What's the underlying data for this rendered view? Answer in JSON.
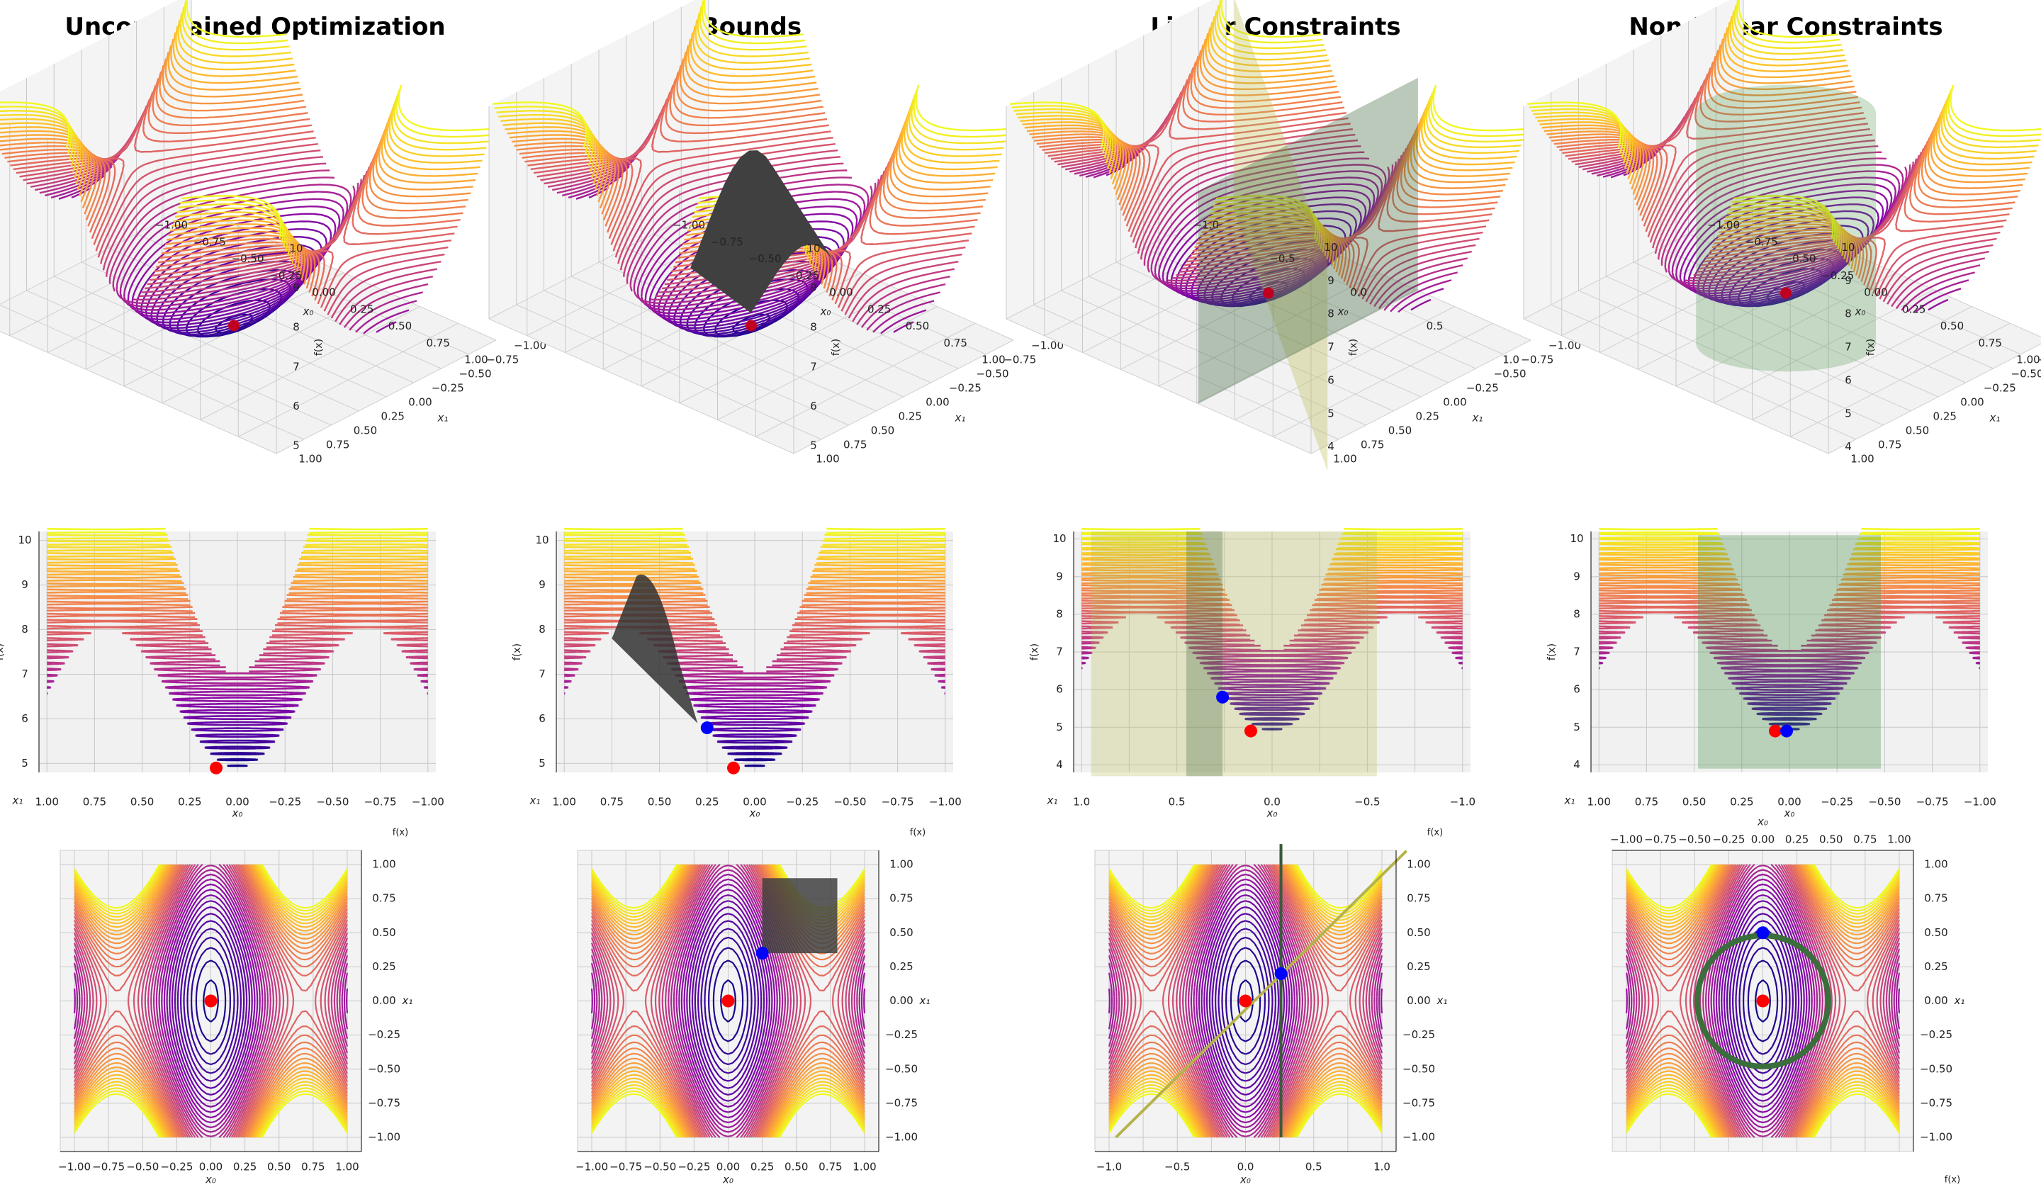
{
  "figure": {
    "columns": [
      {
        "title": "Unconstrained Optimization",
        "constraint": "none"
      },
      {
        "title": "Bounds",
        "constraint": "bounds"
      },
      {
        "title": "Linear Constraints",
        "constraint": "linear"
      },
      {
        "title": "Non-Linear Constraints",
        "constraint": "nonlinear"
      }
    ],
    "rows": [
      "3D perspective view",
      "side view (f(x) vs x0)",
      "top view (x1 vs x0)"
    ]
  },
  "chart_data": [
    {
      "type": "line",
      "title": "Unconstrained Optimization",
      "views": [
        "perspective-3d",
        "side",
        "top"
      ],
      "xlabel": "x_0",
      "ylabel": "x_1",
      "zlabel": "f(x)",
      "xlim": [
        -1.0,
        1.0
      ],
      "ylim": [
        -1.0,
        1.0
      ],
      "zlim": [
        4.8,
        10.2
      ],
      "x_ticks": [
        "-1.00",
        "-0.75",
        "-0.50",
        "-0.25",
        "0.00",
        "0.25",
        "0.50",
        "0.75",
        "1.00"
      ],
      "y_ticks": [
        "-1.00",
        "-0.75",
        "-0.50",
        "-0.25",
        "0.00",
        "0.25",
        "0.50",
        "0.75",
        "1.00"
      ],
      "z_ticks": [
        "5",
        "6",
        "7",
        "8",
        "9",
        "10"
      ],
      "colormap": "plasma",
      "unconstrained_minimum": {
        "x0": 0.0,
        "x1": 0.0,
        "f": 4.9,
        "color": "#ff0000"
      },
      "constrained_minimum": null
    },
    {
      "type": "line",
      "title": "Bounds",
      "views": [
        "perspective-3d",
        "side",
        "top"
      ],
      "xlabel": "x_0",
      "ylabel": "x_1",
      "zlabel": "f(x)",
      "xlim": [
        -1.0,
        1.0
      ],
      "ylim": [
        -1.0,
        1.0
      ],
      "zlim": [
        4.8,
        10.2
      ],
      "x_ticks": [
        "-1.00",
        "-0.75",
        "-0.50",
        "-0.25",
        "0.00",
        "0.25",
        "0.50",
        "0.75",
        "1.00"
      ],
      "y_ticks": [
        "-1.00",
        "-0.75",
        "-0.50",
        "-0.25",
        "0.00",
        "0.25",
        "0.50",
        "0.75",
        "1.00"
      ],
      "z_ticks": [
        "5",
        "6",
        "7",
        "8",
        "9",
        "10"
      ],
      "colormap": "plasma",
      "bounds_region": {
        "x0": [
          0.25,
          0.8
        ],
        "x1": [
          0.35,
          0.9
        ],
        "color": "#404040"
      },
      "unconstrained_minimum": {
        "x0": 0.0,
        "x1": 0.0,
        "f": 4.9,
        "color": "#ff0000"
      },
      "constrained_minimum": {
        "x0": 0.25,
        "x1": 0.35,
        "f": 5.8,
        "color": "#0000ff"
      }
    },
    {
      "type": "line",
      "title": "Linear Constraints",
      "views": [
        "perspective-3d",
        "side",
        "top"
      ],
      "xlabel": "x_0",
      "ylabel": "x_1",
      "zlabel": "f(x)",
      "xlim": [
        -1.0,
        1.0
      ],
      "ylim": [
        -1.0,
        1.0
      ],
      "zlim": [
        3.8,
        10.2
      ],
      "x_ticks": [
        "-1.0",
        "-0.5",
        "0.0",
        "0.5",
        "1.0"
      ],
      "y_ticks": [
        "-1.00",
        "-0.75",
        "-0.50",
        "-0.25",
        "0.00",
        "0.25",
        "0.50",
        "0.75",
        "1.00"
      ],
      "z_ticks": [
        "4",
        "5",
        "6",
        "7",
        "8",
        "9",
        "10"
      ],
      "colormap": "plasma",
      "constraint_planes": [
        {
          "name": "diagonal plane",
          "line": [
            [
              -0.95,
              -1.0
            ],
            [
              1.18,
              1.1
            ]
          ],
          "color": "#b5b34a"
        },
        {
          "name": "vertical plane",
          "x0": 0.26,
          "color": "#3a5a3a"
        }
      ],
      "unconstrained_minimum": {
        "x0": 0.0,
        "x1": 0.0,
        "f": 4.9,
        "color": "#ff0000"
      },
      "constrained_minimum": {
        "x0": 0.26,
        "x1": 0.2,
        "f": 5.8,
        "color": "#0000ff"
      }
    },
    {
      "type": "line",
      "title": "Non-Linear Constraints",
      "views": [
        "perspective-3d",
        "side",
        "top"
      ],
      "xlabel": "x_0",
      "ylabel": "x_1",
      "zlabel": "f(x)",
      "xlim": [
        -1.0,
        1.0
      ],
      "ylim": [
        -1.0,
        1.0
      ],
      "zlim": [
        3.8,
        10.2
      ],
      "x_ticks": [
        "-1.00",
        "-0.75",
        "-0.50",
        "-0.25",
        "0.00",
        "0.25",
        "0.50",
        "0.75",
        "1.00"
      ],
      "y_ticks": [
        "-1.00",
        "-0.75",
        "-0.50",
        "-0.25",
        "0.00",
        "0.25",
        "0.50",
        "0.75",
        "1.00"
      ],
      "z_ticks": [
        "4",
        "5",
        "6",
        "7",
        "8",
        "9",
        "10"
      ],
      "colormap": "plasma",
      "constraint_circle": {
        "center": [
          0.0,
          0.0
        ],
        "radius": 0.48,
        "color": "#3a6e3a"
      },
      "unconstrained_minimum": {
        "x0": 0.0,
        "x1": 0.0,
        "f": 4.9,
        "color": "#ff0000"
      },
      "constrained_minimum": {
        "x0": 0.0,
        "x1": 0.5,
        "f": 4.9,
        "color": "#0000ff"
      }
    }
  ]
}
